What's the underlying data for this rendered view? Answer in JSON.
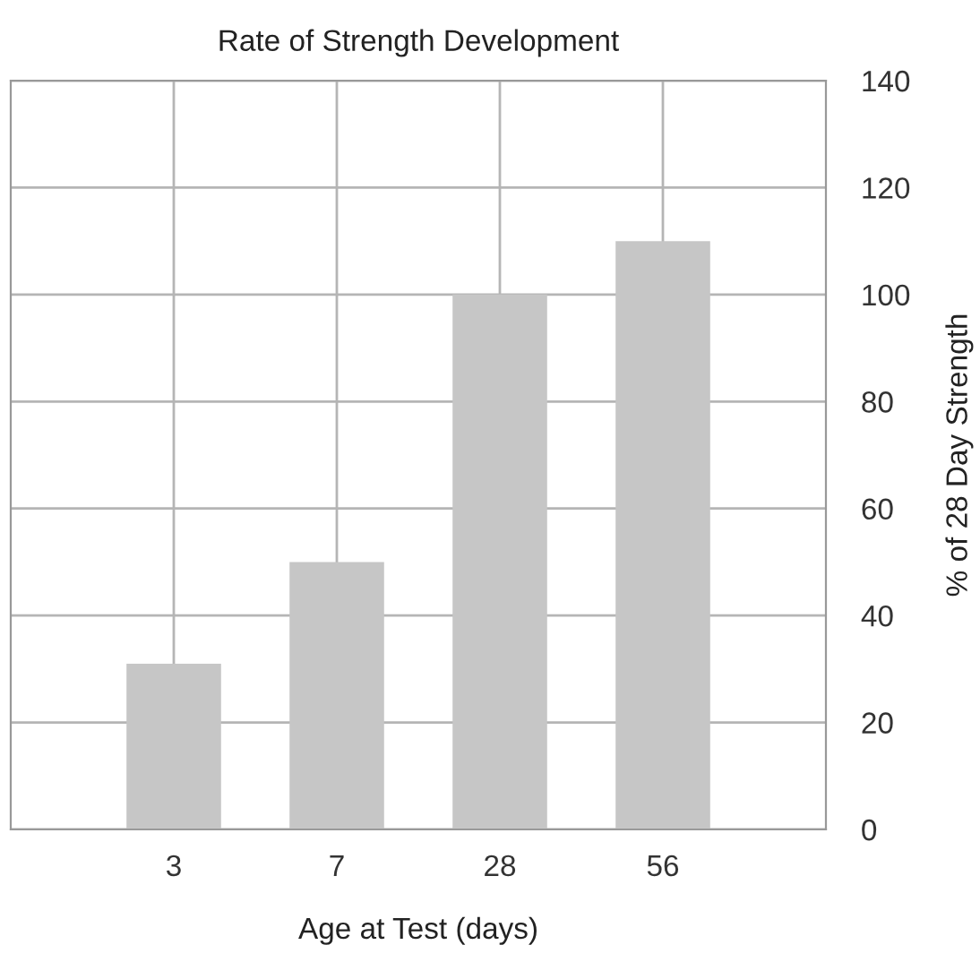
{
  "chart_data": {
    "type": "bar",
    "title": "Rate of Strength Development",
    "xlabel": "Age at Test (days)",
    "ylabel": "% of 28 Day Strength",
    "categories": [
      "3",
      "7",
      "28",
      "56"
    ],
    "values": [
      31,
      50,
      100,
      110
    ],
    "color": "#c6c6c6",
    "ylim": [
      0,
      140
    ],
    "yticks": [
      0,
      20,
      40,
      60,
      80,
      100,
      120,
      140
    ],
    "grid": true
  }
}
